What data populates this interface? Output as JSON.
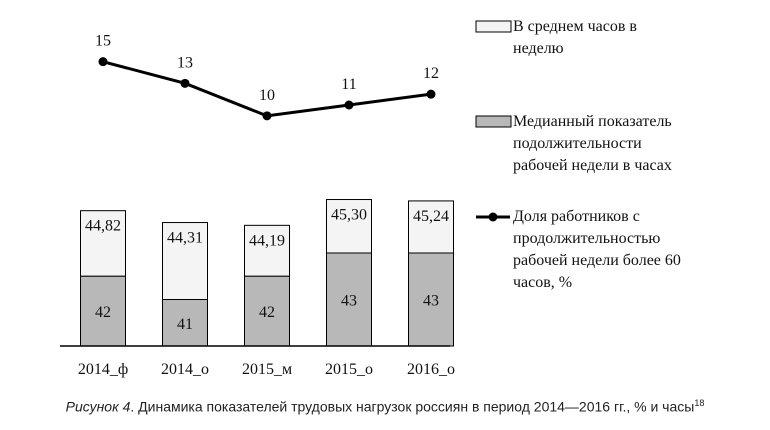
{
  "chart_data": {
    "type": "bar",
    "categories": [
      "2014_ф",
      "2014_о",
      "2015_м",
      "2015_о",
      "2016_о"
    ],
    "series": [
      {
        "name": "Медианный показатель подолжительности рабочей недели в часах",
        "kind": "bar-lower",
        "values": [
          42,
          41,
          42,
          43,
          43
        ],
        "labels": [
          "42",
          "41",
          "42",
          "43",
          "43"
        ],
        "color": "#b8b8b8"
      },
      {
        "name": "В среднем часов в неделю",
        "kind": "bar-total",
        "values": [
          44.82,
          44.31,
          44.19,
          45.3,
          45.24
        ],
        "labels": [
          "44,82",
          "44,31",
          "44,19",
          "45,30",
          "45,24"
        ],
        "color": "#f4f4f4"
      },
      {
        "name": "Доля работников с продолжительностью рабочей недели более 60 часов, %",
        "kind": "line",
        "values": [
          15,
          13,
          10,
          11,
          12
        ],
        "labels": [
          "15",
          "13",
          "10",
          "11",
          "12"
        ],
        "color": "#000000"
      }
    ],
    "legend": {
      "position": "right",
      "items": [
        {
          "label": "В среднем часов в неделю",
          "lines": [
            "В среднем часов в",
            "неделю"
          ]
        },
        {
          "label": "Медианный показатель подолжительности рабочей недели в часах",
          "lines": [
            "Медианный показатель",
            "подолжительности",
            "рабочей недели в часах"
          ]
        },
        {
          "label": "Доля работников с продолжительностью рабочей недели более 60 часов, %",
          "lines": [
            "Доля работников с",
            "продолжительностью",
            "рабочей недели более 60",
            "часов, %"
          ]
        }
      ]
    },
    "grid": false,
    "ylim": [
      39,
      47
    ]
  },
  "caption": {
    "lead": "Рисунок 4",
    "text": ". Динамика показателей трудовых нагрузок россиян в период 2014—2016 гг., % и часы",
    "footnote": "18"
  }
}
